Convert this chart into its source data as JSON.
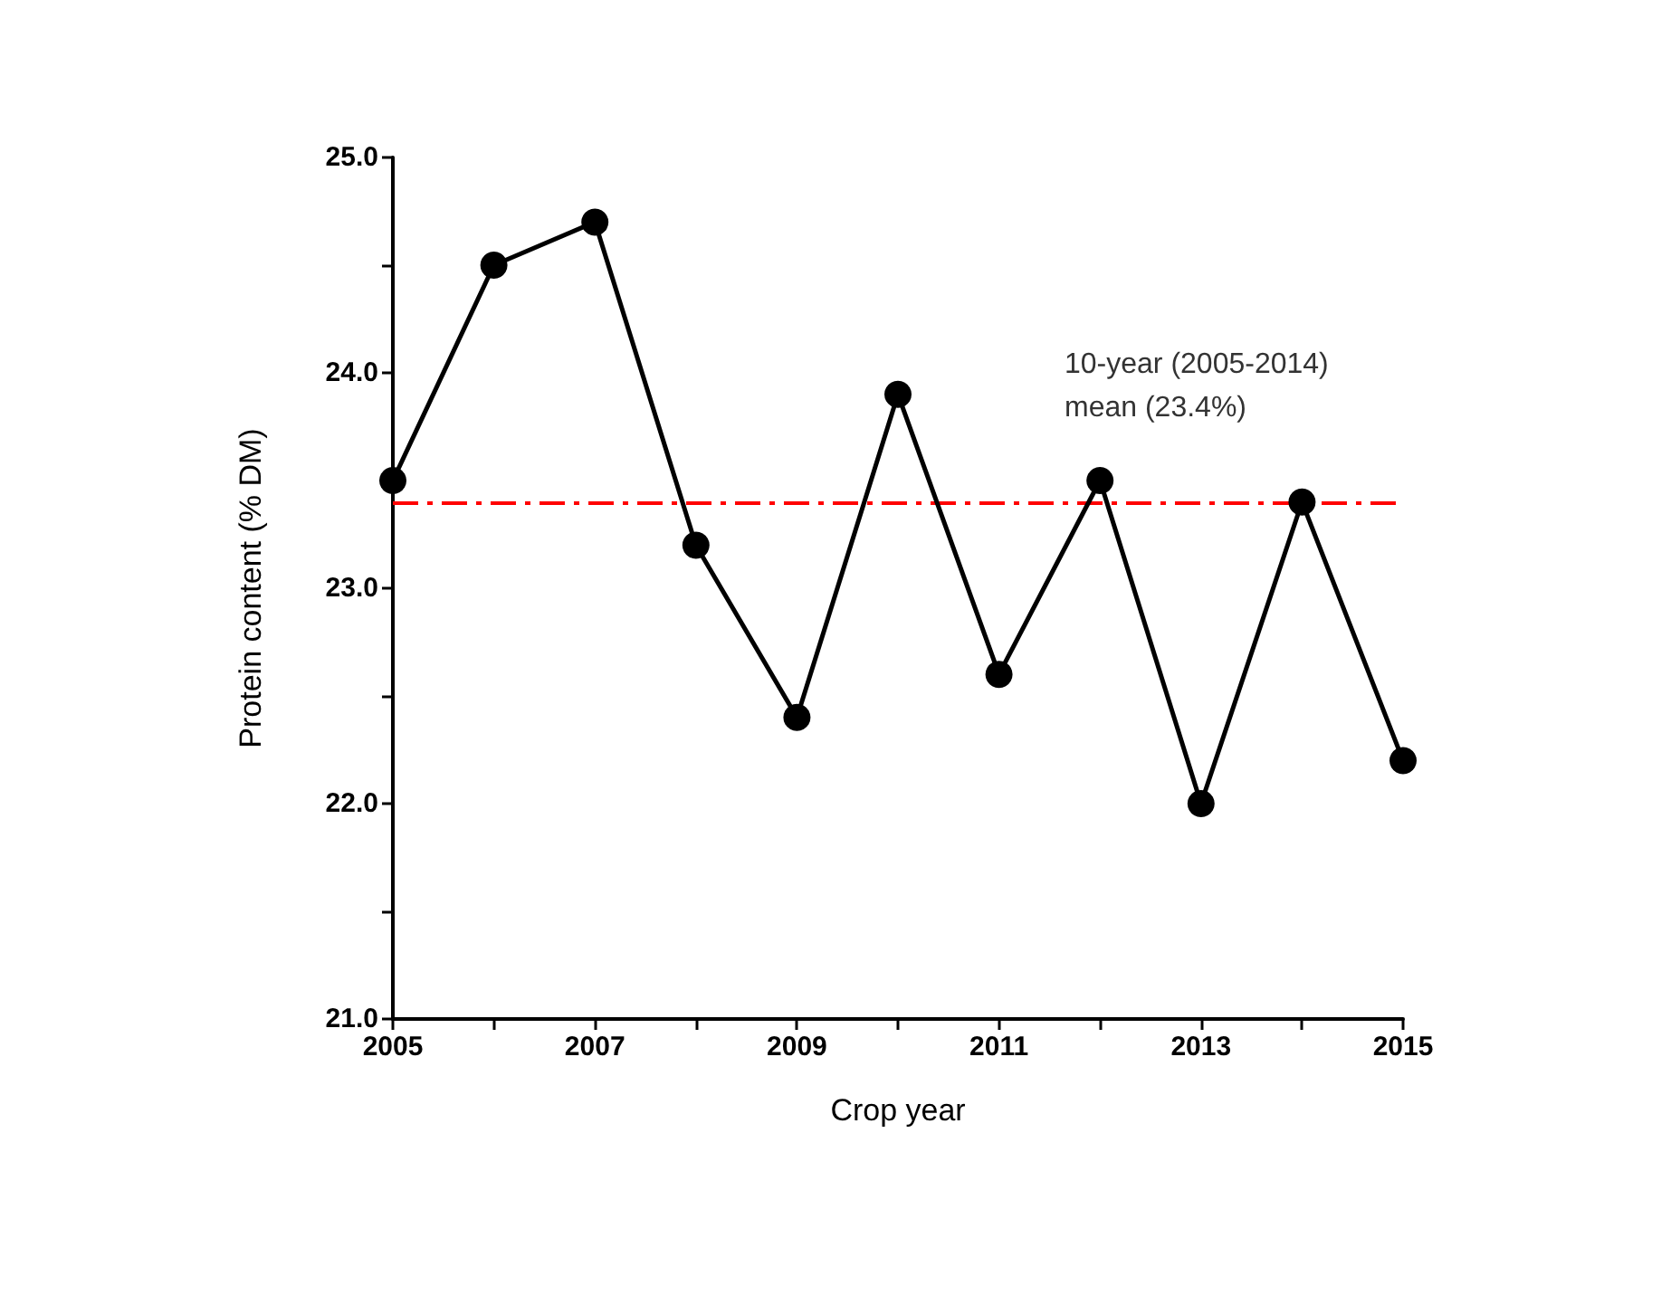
{
  "chart_data": {
    "type": "line",
    "xlabel": "Crop year",
    "ylabel": "Protein content (% DM)",
    "x": [
      2005,
      2006,
      2007,
      2008,
      2009,
      2010,
      2011,
      2012,
      2013,
      2014,
      2015
    ],
    "series": [
      {
        "color": "#000000",
        "values": [
          23.5,
          24.5,
          24.7,
          23.2,
          22.4,
          23.9,
          22.6,
          23.5,
          22.0,
          23.4,
          22.2
        ]
      }
    ],
    "xlim": [
      2005,
      2015
    ],
    "xticks": [
      2005,
      {
        "value": 2006,
        "label": null
      },
      2007,
      {
        "value": 2008,
        "label": null
      },
      2009,
      {
        "value": 2010,
        "label": null
      },
      2011,
      {
        "value": 2012,
        "label": null
      },
      2013,
      {
        "value": 2014,
        "label": null
      },
      2015
    ],
    "ylim": [
      21,
      25
    ],
    "yticks": [
      {
        "value": 21,
        "label": "21.0"
      },
      {
        "value": 21.5,
        "label": null
      },
      {
        "value": 22,
        "label": "22.0"
      },
      {
        "value": 22.5,
        "label": null
      },
      {
        "value": 23,
        "label": "23.0"
      },
      {
        "value": 23.5,
        "label": null
      },
      {
        "value": 24,
        "label": "24.0"
      },
      {
        "value": 24.5,
        "label": null
      },
      {
        "value": 25,
        "label": "25.0"
      }
    ],
    "ref_lines": [
      {
        "axis": "y",
        "value": 23.4,
        "label": "10-year (2005-2014)\nmean (23.4%)",
        "color": "#ff0000",
        "line_style": "dashdot"
      }
    ],
    "grid": false,
    "marker": "circle",
    "line_style": "solid"
  }
}
